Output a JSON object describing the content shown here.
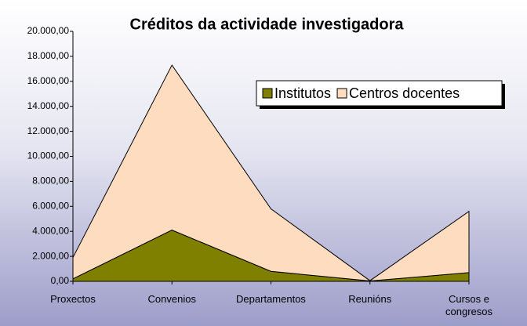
{
  "chart_data": {
    "type": "area",
    "stacked": true,
    "title": "Créditos da actividade investigadora",
    "categories": [
      "Proxectos",
      "Convenios",
      "Departamentos",
      "Reunións",
      "Cursos e congresos"
    ],
    "series": [
      {
        "name": "Institutos",
        "color": "#808000",
        "values": [
          200,
          4100,
          800,
          30,
          700
        ]
      },
      {
        "name": "Centros docentes",
        "color": "#fddcc0",
        "values": [
          1700,
          13200,
          5000,
          20,
          4900
        ]
      }
    ],
    "ylim": [
      0,
      20000
    ],
    "yticks": [
      {
        "value": 0,
        "label": "0,00"
      },
      {
        "value": 2000,
        "label": "2.000,00"
      },
      {
        "value": 4000,
        "label": "4.000,00"
      },
      {
        "value": 6000,
        "label": "6.000,00"
      },
      {
        "value": 8000,
        "label": "8.000,00"
      },
      {
        "value": 10000,
        "label": "10.000,00"
      },
      {
        "value": 12000,
        "label": "12.000,00"
      },
      {
        "value": 14000,
        "label": "14.000,00"
      },
      {
        "value": 16000,
        "label": "16.000,00"
      },
      {
        "value": 18000,
        "label": "18.000,00"
      },
      {
        "value": 20000,
        "label": "20.000,00"
      }
    ],
    "legend": "top-right"
  }
}
